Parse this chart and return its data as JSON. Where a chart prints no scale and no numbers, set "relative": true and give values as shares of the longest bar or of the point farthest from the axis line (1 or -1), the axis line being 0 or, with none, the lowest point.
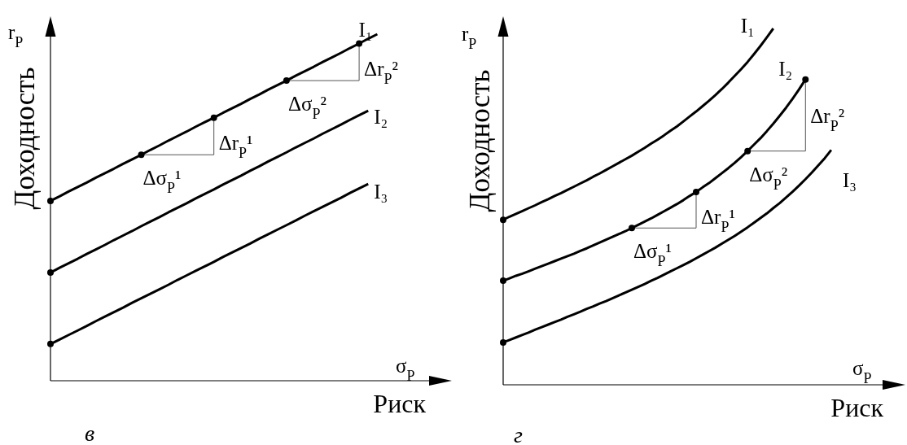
{
  "chart_data": [
    {
      "type": "line",
      "title": "в",
      "xlabel": "Риск",
      "ylabel": "Доходность",
      "relative": true,
      "annotations": [
        "r$_{P}$",
        "σ$_{P}$",
        "Δσ$_{P}$¹",
        "Δr$_{P}$¹",
        "Δσ$_{P}$²",
        "Δr$_{P}$²"
      ],
      "categories": [
        null,
        null,
        null,
        null,
        null,
        null,
        null,
        null,
        null,
        null,
        null,
        null,
        null,
        null,
        null,
        null,
        null,
        null,
        null,
        null,
        null,
        null,
        null,
        null,
        null,
        null,
        null,
        null,
        null,
        null,
        null,
        null,
        null,
        null,
        null,
        null,
        null
      ],
      "series": [
        {
          "name": "I₁",
          "color": "#000000",
          "values": [
            0.519,
            0.532,
            0.546,
            0.559,
            0.572,
            0.586,
            0.599,
            0.612,
            0.626,
            0.639,
            0.652,
            0.666,
            0.679,
            0.693,
            0.706,
            0.719,
            0.733,
            0.746,
            0.759,
            0.773,
            0.786,
            0.799,
            0.813,
            0.826,
            0.84,
            0.853,
            0.866,
            0.88,
            0.893,
            0.906,
            0.92,
            0.933,
            0.946,
            0.96,
            0.973,
            0.987,
            1
          ]
        },
        {
          "name": "I₂",
          "color": "#000000",
          "values": [
            0.312,
            0.326,
            0.339,
            0.352,
            0.366,
            0.379,
            0.392,
            0.406,
            0.419,
            0.432,
            0.446,
            0.459,
            0.472,
            0.486,
            0.499,
            0.512,
            0.526,
            0.539,
            0.552,
            0.566,
            0.579,
            0.592,
            0.606,
            0.619,
            0.633,
            0.646,
            0.659,
            0.673,
            0.686,
            0.699,
            0.713,
            0.726,
            0.739,
            0.753,
            0.766,
            0.779,
            null
          ]
        },
        {
          "name": "I₃",
          "color": "#000000",
          "values": [
            0.106,
            0.119,
            0.132,
            0.145,
            0.158,
            0.172,
            0.185,
            0.198,
            0.211,
            0.225,
            0.238,
            0.251,
            0.264,
            0.277,
            0.291,
            0.304,
            0.317,
            0.33,
            0.343,
            0.357,
            0.37,
            0.383,
            0.396,
            0.41,
            0.423,
            0.436,
            0.449,
            0.462,
            0.476,
            0.489,
            0.502,
            0.515,
            0.528,
            0.542,
            0.555,
            0.568,
            null
          ]
        },
        {
          "type": "line",
          "marker": "circle",
          "color": "#000000",
          "values": [
            0.519,
            null,
            null,
            null,
            null,
            null,
            null,
            null,
            null,
            null,
            null,
            null,
            null,
            null,
            null,
            null,
            null,
            null,
            null,
            null,
            null,
            null,
            null,
            null,
            null,
            null,
            null,
            null,
            null,
            null,
            null,
            null,
            null,
            null,
            null,
            null,
            null
          ]
        },
        {
          "type": "line",
          "marker": "circle",
          "color": "#000000",
          "values": [
            0.312,
            null,
            null,
            null,
            null,
            null,
            null,
            null,
            null,
            null,
            null,
            null,
            null,
            null,
            null,
            null,
            null,
            null,
            null,
            null,
            null,
            null,
            null,
            null,
            null,
            null,
            null,
            null,
            null,
            null,
            null,
            null,
            null,
            null,
            null,
            null,
            null
          ]
        },
        {
          "type": "line",
          "marker": "circle",
          "color": "#000000",
          "values": [
            0.106,
            null,
            null,
            null,
            null,
            null,
            null,
            null,
            null,
            null,
            null,
            null,
            null,
            null,
            null,
            null,
            null,
            null,
            null,
            null,
            null,
            null,
            null,
            null,
            null,
            null,
            null,
            null,
            null,
            null,
            null,
            null,
            null,
            null,
            null,
            null,
            null
          ]
        },
        {
          "type": "line",
          "marker": "circle",
          "color": "#000000",
          "values": [
            null,
            null,
            null,
            null,
            null,
            null,
            null,
            null,
            null,
            null,
            0.652,
            null,
            null,
            null,
            null,
            null,
            null,
            null,
            null,
            null,
            null,
            null,
            null,
            null,
            null,
            null,
            null,
            null,
            null,
            null,
            null,
            null,
            null,
            null,
            null,
            null,
            null
          ]
        },
        {
          "type": "line",
          "marker": "circle",
          "color": "#000000",
          "values": [
            null,
            null,
            null,
            null,
            null,
            null,
            null,
            null,
            null,
            null,
            null,
            null,
            null,
            null,
            null,
            null,
            null,
            null,
            0.759,
            null,
            null,
            null,
            null,
            null,
            null,
            null,
            null,
            null,
            null,
            null,
            null,
            null,
            null,
            null,
            null,
            null,
            null
          ]
        },
        {
          "type": "line",
          "marker": "circle",
          "color": "#000000",
          "values": [
            null,
            null,
            null,
            null,
            null,
            null,
            null,
            null,
            null,
            null,
            null,
            null,
            null,
            null,
            null,
            null,
            null,
            null,
            null,
            null,
            null,
            null,
            null,
            null,
            null,
            null,
            0.866,
            null,
            null,
            null,
            null,
            null,
            null,
            null,
            null,
            null,
            null
          ]
        },
        {
          "type": "line",
          "marker": "circle",
          "color": "#000000",
          "values": [
            null,
            null,
            null,
            null,
            null,
            null,
            null,
            null,
            null,
            null,
            null,
            null,
            null,
            null,
            null,
            null,
            null,
            null,
            null,
            null,
            null,
            null,
            null,
            null,
            null,
            null,
            null,
            null,
            null,
            null,
            null,
            null,
            null,
            null,
            0.973,
            null,
            null
          ]
        }
      ]
    },
    {
      "type": "line",
      "title": "г",
      "xlabel": "Риск",
      "ylabel": "Доходность",
      "relative": true,
      "annotations": [
        "r$_{P}$",
        "σ$_{P}$",
        "Δσ$_{P}$¹",
        "Δr$_{P}$¹",
        "Δσ$_{P}$²",
        "Δr$_{P}$²"
      ],
      "categories": [
        null,
        null,
        null,
        null,
        null,
        null,
        null,
        null,
        null,
        null,
        null,
        null,
        null,
        null,
        null,
        null,
        null,
        null,
        null,
        null,
        null,
        null,
        null,
        null,
        null,
        null,
        null,
        null,
        null,
        null,
        null,
        null,
        null,
        null,
        null,
        null,
        null,
        null,
        null,
        null,
        null,
        null,
        null,
        null,
        null,
        null,
        null,
        null,
        null,
        null,
        null,
        null
      ],
      "series": [
        {
          "name": "I₁",
          "color": "#000000",
          "values": [
            0.463,
            0.472,
            0.48,
            0.488,
            0.496,
            0.504,
            0.513,
            0.521,
            0.53,
            0.538,
            0.547,
            0.556,
            0.565,
            0.574,
            0.584,
            0.593,
            0.603,
            0.613,
            0.623,
            0.633,
            0.643,
            0.654,
            0.665,
            0.677,
            0.688,
            0.7,
            0.713,
            0.725,
            0.739,
            0.753,
            0.767,
            0.782,
            0.797,
            0.813,
            0.83,
            0.848,
            0.867,
            0.886,
            0.906,
            0.928,
            0.951,
            0.975,
            1,
            null,
            null,
            null,
            null,
            null,
            null,
            null,
            null,
            null
          ]
        },
        {
          "name": "I₂",
          "color": "#000000",
          "values": [
            0.292,
            0.299,
            0.306,
            0.312,
            0.319,
            0.326,
            0.333,
            0.34,
            0.347,
            0.354,
            0.361,
            0.368,
            0.376,
            0.383,
            0.391,
            0.399,
            0.407,
            0.415,
            0.423,
            0.431,
            0.44,
            0.449,
            0.458,
            0.467,
            0.477,
            0.487,
            0.497,
            0.507,
            0.518,
            0.53,
            0.541,
            0.554,
            0.566,
            0.58,
            0.594,
            0.608,
            0.623,
            0.639,
            0.656,
            0.674,
            0.692,
            0.712,
            0.733,
            0.755,
            0.778,
            0.803,
            0.829,
            0.857,
            null,
            null,
            null,
            null
          ]
        },
        {
          "name": "I₃",
          "color": "#000000",
          "values": [
            0.119,
            0.126,
            0.133,
            0.14,
            0.147,
            0.155,
            0.162,
            0.169,
            0.176,
            0.183,
            0.191,
            0.198,
            0.205,
            0.213,
            0.22,
            0.228,
            0.235,
            0.243,
            0.251,
            0.259,
            0.267,
            0.275,
            0.283,
            0.292,
            0.3,
            0.309,
            0.318,
            0.327,
            0.336,
            0.345,
            0.355,
            0.365,
            0.375,
            0.385,
            0.396,
            0.407,
            0.418,
            0.43,
            0.442,
            0.455,
            0.468,
            0.481,
            0.496,
            0.51,
            0.526,
            0.542,
            0.559,
            0.577,
            0.596,
            0.616,
            0.636,
            0.659
          ]
        },
        {
          "type": "line",
          "marker": "circle",
          "color": "#000000",
          "values": [
            0.463,
            null,
            null,
            null,
            null,
            null,
            null,
            null,
            null,
            null,
            null,
            null,
            null,
            null,
            null,
            null,
            null,
            null,
            null,
            null,
            null,
            null,
            null,
            null,
            null,
            null,
            null,
            null,
            null,
            null,
            null,
            null,
            null,
            null,
            null,
            null,
            null,
            null,
            null,
            null,
            null,
            null,
            null,
            null,
            null,
            null,
            null,
            null,
            null,
            null,
            null,
            null
          ]
        },
        {
          "type": "line",
          "marker": "circle",
          "color": "#000000",
          "values": [
            0.292,
            null,
            null,
            null,
            null,
            null,
            null,
            null,
            null,
            null,
            null,
            null,
            null,
            null,
            null,
            null,
            null,
            null,
            null,
            null,
            null,
            null,
            null,
            null,
            null,
            null,
            null,
            null,
            null,
            null,
            null,
            null,
            null,
            null,
            null,
            null,
            null,
            null,
            null,
            null,
            null,
            null,
            null,
            null,
            null,
            null,
            null,
            null,
            null,
            null,
            null,
            null
          ]
        },
        {
          "type": "line",
          "marker": "circle",
          "color": "#000000",
          "values": [
            0.119,
            null,
            null,
            null,
            null,
            null,
            null,
            null,
            null,
            null,
            null,
            null,
            null,
            null,
            null,
            null,
            null,
            null,
            null,
            null,
            null,
            null,
            null,
            null,
            null,
            null,
            null,
            null,
            null,
            null,
            null,
            null,
            null,
            null,
            null,
            null,
            null,
            null,
            null,
            null,
            null,
            null,
            null,
            null,
            null,
            null,
            null,
            null,
            null,
            null,
            null,
            null
          ]
        },
        {
          "type": "line",
          "marker": "circle",
          "color": "#000000",
          "values": [
            null,
            null,
            null,
            null,
            null,
            null,
            null,
            null,
            null,
            null,
            null,
            null,
            null,
            null,
            null,
            null,
            null,
            null,
            null,
            null,
            0.44,
            null,
            null,
            null,
            null,
            null,
            null,
            null,
            null,
            null,
            null,
            null,
            null,
            null,
            null,
            null,
            null,
            null,
            null,
            null,
            null,
            null,
            null,
            null,
            null,
            null,
            null,
            null,
            null,
            null,
            null,
            null
          ]
        },
        {
          "type": "line",
          "marker": "circle",
          "color": "#000000",
          "values": [
            null,
            null,
            null,
            null,
            null,
            null,
            null,
            null,
            null,
            null,
            null,
            null,
            null,
            null,
            null,
            null,
            null,
            null,
            null,
            null,
            null,
            null,
            null,
            null,
            null,
            null,
            null,
            null,
            null,
            null,
            0.541,
            null,
            null,
            null,
            null,
            null,
            null,
            null,
            null,
            null,
            null,
            null,
            null,
            null,
            null,
            null,
            null,
            null,
            null,
            null,
            null,
            null
          ]
        },
        {
          "type": "line",
          "marker": "circle",
          "color": "#000000",
          "values": [
            null,
            null,
            null,
            null,
            null,
            null,
            null,
            null,
            null,
            null,
            null,
            null,
            null,
            null,
            null,
            null,
            null,
            null,
            null,
            null,
            null,
            null,
            null,
            null,
            null,
            null,
            null,
            null,
            null,
            null,
            null,
            null,
            null,
            null,
            null,
            null,
            null,
            null,
            0.656,
            null,
            null,
            null,
            null,
            null,
            null,
            null,
            null,
            null,
            null,
            null,
            null,
            null
          ]
        },
        {
          "type": "line",
          "marker": "circle",
          "color": "#000000",
          "values": [
            null,
            null,
            null,
            null,
            null,
            null,
            null,
            null,
            null,
            null,
            null,
            null,
            null,
            null,
            null,
            null,
            null,
            null,
            null,
            null,
            null,
            null,
            null,
            null,
            null,
            null,
            null,
            null,
            null,
            null,
            null,
            null,
            null,
            null,
            null,
            null,
            null,
            null,
            null,
            null,
            null,
            null,
            null,
            null,
            null,
            null,
            null,
            0.857,
            null,
            null,
            null,
            null
          ]
        }
      ]
    }
  ]
}
